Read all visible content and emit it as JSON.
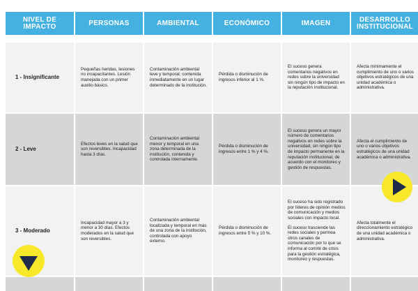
{
  "headers": [
    "NIVEL DE IMPACTO",
    "PERSONAS",
    "AMBIENTAL",
    "ECONÓMICO",
    "IMAGEN",
    "DESARROLLO INSTITUCIONAL"
  ],
  "rows": [
    {
      "level": "1 - Insignificante",
      "personas": "Pequeñas heridas, lesiones no incapacitantes. Lesión manejada con un primer auxilio básico.",
      "ambiental": "Contaminación ambiental leve y temporal, contenida inmediatamente en un lugar determinado de la institución.",
      "economico": "Pérdida o disminución de ingresos inferior al 1 %.",
      "imagen": [
        "El suceso genera comentarios negativos en redes sobre la universidad sin ningún tipo de impacto en la reputación institucional."
      ],
      "desarrollo": "Afecta mínimamente el cumplimiento de uno o varios objetivos estratégicos de una unidad académica o administrativa."
    },
    {
      "level": "2 -  Leve",
      "personas": "Efectos leves en la salud que son reversibles. Incapacidad hasta 3 días.",
      "ambiental": "Contaminación ambiental menor y temporal en una zona determinada de la institución, contenida y controlada internamente.",
      "economico": "Pérdida o disminución de ingresos entre 1 % y 4 %.",
      "imagen": [
        "El suceso genera un mayor número de comentarios negativos en redes sobre la universidad, sin ningún tipo de impacto permanente en la reputación institucional, de acuerdo con el monitoreo y gestión de respuestas."
      ],
      "desarrollo": "Afecta el cumplimiento de uno o varios objetivos estratégicos de una unidad académica o administrativa."
    },
    {
      "level": "3 - Moderado",
      "personas": "Incapacidad mayor a 3 y menor a 30 días. Efectos moderados en la salud que son reversibles.",
      "ambiental": "Contaminación ambiental localizada y temporal en más de una zona de la institución, controlada con apoyo externo.",
      "economico": "Pérdida o disminución de ingresos entre 5 % y 10 %.",
      "imagen": [
        "El suceso ha sido registrado por líderes de opinión medios de comunicación y medios sociales  con impacto local.",
        "El suceso trasciende las redes sociales y permea otros canales de comunicación por lo que se informa al comité de crisis para la gestión estratégica, monitoreo y respuestas."
      ],
      "desarrollo": "Afecta totalmente el direccionamiento estratégico de una unidad académica o administrativa."
    }
  ],
  "controls": {
    "next_icon": "play-triangle-right-icon",
    "down_icon": "triangle-down-icon",
    "button_color": "#f7e92a",
    "icon_color": "#1f2b4a"
  },
  "colors": {
    "header": "#45b1e1",
    "row_light": "#f2f2f2",
    "row_dark": "#d5d6d8"
  }
}
